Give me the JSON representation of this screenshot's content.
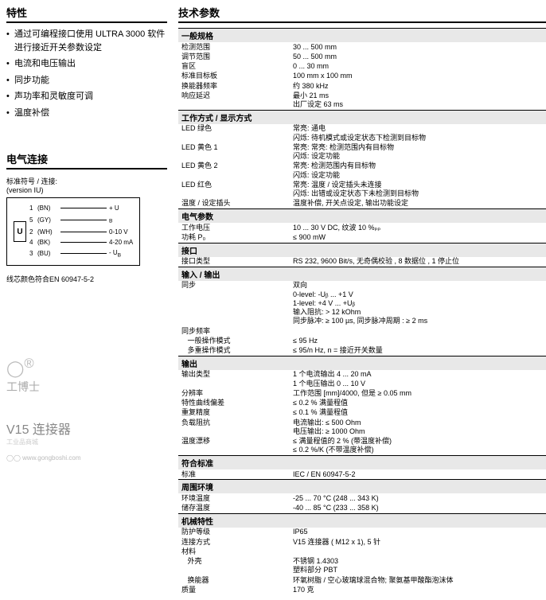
{
  "left": {
    "features_title": "特性",
    "features": [
      "通过可编程接口使用 ULTRA 3000 软件进行接近开关参数设定",
      "电流和电压输出",
      "同步功能",
      "声功率和灵敏度可调",
      "温度补偿"
    ],
    "elec_title": "电气连接",
    "elec_note": "标准符号 / 连接:\n(version IU)",
    "wires": [
      {
        "num": "1",
        "color": "(BN)",
        "sig": "+ U"
      },
      {
        "num": "5",
        "color": "(GY)",
        "sig": "",
        "sub": "B"
      },
      {
        "num": "2",
        "color": "(WH)",
        "sig": "0-10 V"
      },
      {
        "num": "4",
        "color": "(BK)",
        "sig": "4-20 mA"
      },
      {
        "num": "3",
        "color": "(BU)",
        "sig": "- U",
        "sub": "B"
      }
    ],
    "color_note": "线芯颜色符合EN 60947-5-2",
    "wm1": "工博士",
    "wm2": "V15 连接器",
    "wm3": "工业品商城",
    "wm4": "www.gongboshi.com"
  },
  "right": {
    "title": "技术参数",
    "sections": [
      {
        "header": "一般规格",
        "rows": [
          [
            "检测范围",
            "30 ... 500 mm"
          ],
          [
            "调节范围",
            "50 ... 500 mm"
          ],
          [
            "盲区",
            "0 ... 30 mm"
          ],
          [
            "标准目标板",
            "100 mm x 100 mm"
          ],
          [
            "换能器频率",
            "约 380 kHz"
          ],
          [
            "响应延迟",
            "最小 21 ms\n出厂设定 63 ms"
          ]
        ]
      },
      {
        "header": "工作方式 / 显示方式",
        "rows": [
          [
            "LED 绿色",
            "常亮: 通电\n闪烁: 待机模式或设定状态下检测到目标物"
          ],
          [
            "LED 黄色 1",
            "常亮: 常亮: 检测范围内有目标物\n闪烁: 设定功能"
          ],
          [
            "LED 黄色 2",
            "常亮: 检测范围内有目标物\n闪烁: 设定功能"
          ],
          [
            "LED 红色",
            "常亮: 温度 / 设定插头未连接\n闪烁: 出错或设定状态下未检测到目标物"
          ],
          [
            "温度 / 设定插头",
            "温度补偿, 开关点设定, 输出功能设定"
          ]
        ]
      },
      {
        "header": "电气参数",
        "rows": [
          [
            "工作电压",
            "10 ... 30 V DC, 纹波 10 %ₚₚ"
          ],
          [
            "功耗 P₀",
            "≤ 900 mW"
          ]
        ]
      },
      {
        "header": "接口",
        "rows": [
          [
            "接口类型",
            "RS 232, 9600 Bit/s, 无奇偶校验 , 8 数据位 , 1 停止位"
          ]
        ]
      },
      {
        "header": "输入 / 输出",
        "rows": [
          [
            "同步",
            "双向\n0-level: -Uᵦ ... +1 V\n1-level: +4 V ... +Uᵦ\n输入阻抗: > 12 kOhm\n同步脉冲: ≥ 100 µs, 同步脉冲周期 : ≥ 2 ms"
          ],
          [
            "同步频率",
            ""
          ],
          [
            "   一般操作模式",
            "≤ 95 Hz"
          ],
          [
            "   多重操作模式",
            "≤ 95/n Hz, n = 接近开关数量"
          ]
        ]
      },
      {
        "header": "输出",
        "rows": [
          [
            "输出类型",
            "1 个电流输出 4 ... 20 mA\n1 个电压输出 0 ... 10 V"
          ],
          [
            "分辨率",
            "工作范围 [mm]/4000, 但是 ≥ 0.05 mm"
          ],
          [
            "特性曲线偏差",
            "≤ 0.2 % 满量程值"
          ],
          [
            "重复精度",
            "≤ 0.1 % 满量程值"
          ],
          [
            "负载阻抗",
            "电流输出: ≤ 500 Ohm\n电压输出: ≥ 1000 Ohm"
          ],
          [
            "温度漂移",
            "≤ 满量程值的 2 % (带温度补偿)\n≤ 0.2 %/K (不带温度补偿)"
          ]
        ]
      },
      {
        "header": "符合标准",
        "rows": [
          [
            "标准",
            "IEC / EN 60947-5-2"
          ]
        ]
      },
      {
        "header": "周围环境",
        "rows": [
          [
            "环境温度",
            "-25 ... 70 °C (248 ... 343 K)"
          ],
          [
            "储存温度",
            "-40 ... 85 °C (233 ... 358 K)"
          ]
        ]
      },
      {
        "header": "机械特性",
        "rows": [
          [
            "防护等级",
            "IP65"
          ],
          [
            "连接方式",
            "V15 连接器 ( M12 x 1), 5 针"
          ],
          [
            "材料",
            ""
          ],
          [
            "   外壳",
            "不锈钢 1.4303\n塑料部分 PBT"
          ],
          [
            "   换能器",
            "环氧树脂 / 空心玻璃球混合物; 聚氨基甲酸酯泡沫体"
          ],
          [
            "质量",
            "170 克"
          ]
        ]
      }
    ]
  }
}
